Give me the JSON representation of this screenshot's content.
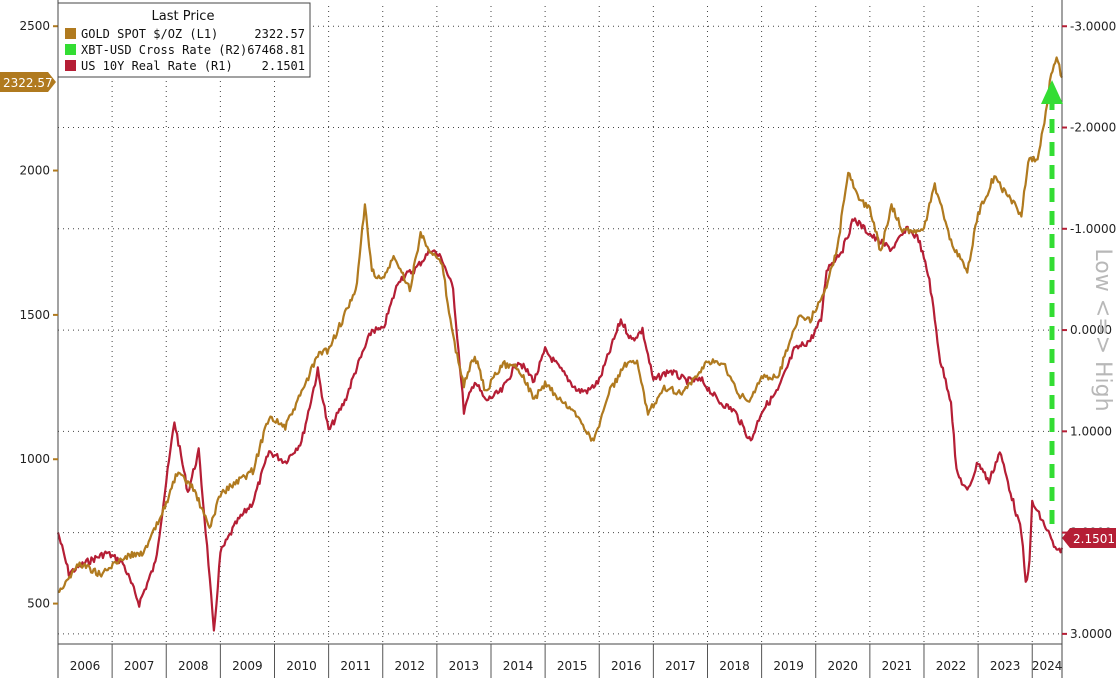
{
  "chart_data": {
    "type": "line",
    "legend": {
      "title": "Last Price",
      "placement": "top-left",
      "entries": [
        {
          "name": "GOLD SPOT $/OZ",
          "axis": "(L1)",
          "last": "2322.57",
          "color": "#b07a1f"
        },
        {
          "name": "XBT-USD Cross Rate",
          "axis": "(R2)",
          "last": "67468.81",
          "color": "#33dd33"
        },
        {
          "name": "US 10Y Real Rate",
          "axis": "(R1)",
          "last": "2.1501",
          "color": "#b51e35"
        }
      ]
    },
    "x_ticks": [
      "2006",
      "2007",
      "2008",
      "2009",
      "2010",
      "2011",
      "2012",
      "2013",
      "2014",
      "2015",
      "2016",
      "2017",
      "2018",
      "2019",
      "2020",
      "2021",
      "2022",
      "2023",
      "2024"
    ],
    "x_range": [
      2006.0,
      2024.55
    ],
    "left_axis": {
      "range": [
        360,
        2570
      ],
      "ticks": [
        "500",
        "1000",
        "1500",
        "2000",
        "2500"
      ],
      "last_tag": "2322.57"
    },
    "right_axis": {
      "inverted": true,
      "range": [
        3.1,
        -3.2
      ],
      "ticks": [
        "-3.0000",
        "-2.0000",
        "-1.0000",
        "0.0000",
        "1.0000",
        "2.0000",
        "3.0000"
      ],
      "last_tag": "2.1501"
    },
    "right_label": "Low <=> High",
    "grid": true,
    "annotation": {
      "type": "dashed-up-arrow",
      "color": "#33dd33"
    },
    "series": [
      {
        "name": "GOLD SPOT $/OZ",
        "axis": "left",
        "color": "#b07a1f",
        "points": [
          [
            2006.0,
            540
          ],
          [
            2006.4,
            640
          ],
          [
            2006.8,
            600
          ],
          [
            2007.2,
            660
          ],
          [
            2007.6,
            680
          ],
          [
            2007.9,
            800
          ],
          [
            2008.2,
            950
          ],
          [
            2008.5,
            900
          ],
          [
            2008.8,
            760
          ],
          [
            2009.0,
            880
          ],
          [
            2009.3,
            920
          ],
          [
            2009.6,
            960
          ],
          [
            2009.9,
            1150
          ],
          [
            2010.2,
            1110
          ],
          [
            2010.5,
            1230
          ],
          [
            2010.8,
            1360
          ],
          [
            2011.0,
            1380
          ],
          [
            2011.3,
            1500
          ],
          [
            2011.5,
            1580
          ],
          [
            2011.67,
            1880
          ],
          [
            2011.8,
            1650
          ],
          [
            2012.0,
            1620
          ],
          [
            2012.2,
            1700
          ],
          [
            2012.5,
            1590
          ],
          [
            2012.7,
            1780
          ],
          [
            2012.9,
            1720
          ],
          [
            2013.1,
            1670
          ],
          [
            2013.3,
            1420
          ],
          [
            2013.5,
            1260
          ],
          [
            2013.7,
            1360
          ],
          [
            2013.9,
            1230
          ],
          [
            2014.2,
            1330
          ],
          [
            2014.5,
            1320
          ],
          [
            2014.8,
            1210
          ],
          [
            2015.0,
            1260
          ],
          [
            2015.3,
            1200
          ],
          [
            2015.6,
            1150
          ],
          [
            2015.9,
            1060
          ],
          [
            2016.2,
            1240
          ],
          [
            2016.5,
            1330
          ],
          [
            2016.7,
            1330
          ],
          [
            2016.9,
            1160
          ],
          [
            2017.2,
            1250
          ],
          [
            2017.5,
            1230
          ],
          [
            2017.8,
            1280
          ],
          [
            2018.0,
            1340
          ],
          [
            2018.3,
            1330
          ],
          [
            2018.6,
            1220
          ],
          [
            2018.8,
            1200
          ],
          [
            2019.0,
            1290
          ],
          [
            2019.3,
            1280
          ],
          [
            2019.5,
            1400
          ],
          [
            2019.7,
            1500
          ],
          [
            2019.9,
            1480
          ],
          [
            2020.2,
            1600
          ],
          [
            2020.4,
            1730
          ],
          [
            2020.6,
            2000
          ],
          [
            2020.8,
            1900
          ],
          [
            2021.0,
            1870
          ],
          [
            2021.2,
            1720
          ],
          [
            2021.4,
            1880
          ],
          [
            2021.6,
            1790
          ],
          [
            2021.8,
            1790
          ],
          [
            2022.0,
            1800
          ],
          [
            2022.2,
            1950
          ],
          [
            2022.5,
            1750
          ],
          [
            2022.8,
            1650
          ],
          [
            2023.0,
            1850
          ],
          [
            2023.3,
            1980
          ],
          [
            2023.5,
            1920
          ],
          [
            2023.8,
            1850
          ],
          [
            2023.95,
            2050
          ],
          [
            2024.1,
            2030
          ],
          [
            2024.25,
            2200
          ],
          [
            2024.35,
            2340
          ],
          [
            2024.45,
            2390
          ],
          [
            2024.55,
            2322
          ]
        ]
      },
      {
        "name": "US 10Y Real Rate",
        "axis": "right",
        "color": "#b51e35",
        "points": [
          [
            2006.0,
            2.0
          ],
          [
            2006.2,
            2.4
          ],
          [
            2006.5,
            2.3
          ],
          [
            2006.9,
            2.2
          ],
          [
            2007.2,
            2.3
          ],
          [
            2007.5,
            2.7
          ],
          [
            2007.8,
            2.3
          ],
          [
            2008.0,
            1.5
          ],
          [
            2008.15,
            0.9
          ],
          [
            2008.4,
            1.6
          ],
          [
            2008.6,
            1.2
          ],
          [
            2008.78,
            2.3
          ],
          [
            2008.88,
            3.0
          ],
          [
            2009.0,
            2.2
          ],
          [
            2009.3,
            1.9
          ],
          [
            2009.6,
            1.7
          ],
          [
            2009.9,
            1.2
          ],
          [
            2010.2,
            1.3
          ],
          [
            2010.5,
            1.1
          ],
          [
            2010.8,
            0.4
          ],
          [
            2011.0,
            1.0
          ],
          [
            2011.3,
            0.7
          ],
          [
            2011.5,
            0.4
          ],
          [
            2011.8,
            0.0
          ],
          [
            2012.0,
            0.0
          ],
          [
            2012.3,
            -0.5
          ],
          [
            2012.6,
            -0.6
          ],
          [
            2012.9,
            -0.8
          ],
          [
            2013.1,
            -0.7
          ],
          [
            2013.3,
            -0.4
          ],
          [
            2013.5,
            0.8
          ],
          [
            2013.7,
            0.5
          ],
          [
            2013.9,
            0.7
          ],
          [
            2014.2,
            0.6
          ],
          [
            2014.5,
            0.3
          ],
          [
            2014.8,
            0.5
          ],
          [
            2015.0,
            0.2
          ],
          [
            2015.3,
            0.4
          ],
          [
            2015.6,
            0.6
          ],
          [
            2015.8,
            0.6
          ],
          [
            2016.0,
            0.5
          ],
          [
            2016.2,
            0.2
          ],
          [
            2016.4,
            -0.1
          ],
          [
            2016.6,
            0.1
          ],
          [
            2016.8,
            0.0
          ],
          [
            2017.0,
            0.5
          ],
          [
            2017.3,
            0.4
          ],
          [
            2017.6,
            0.5
          ],
          [
            2017.9,
            0.5
          ],
          [
            2018.2,
            0.7
          ],
          [
            2018.5,
            0.8
          ],
          [
            2018.8,
            1.1
          ],
          [
            2019.0,
            0.8
          ],
          [
            2019.3,
            0.6
          ],
          [
            2019.6,
            0.2
          ],
          [
            2019.9,
            0.1
          ],
          [
            2020.1,
            -0.1
          ],
          [
            2020.2,
            -0.6
          ],
          [
            2020.5,
            -0.8
          ],
          [
            2020.7,
            -1.1
          ],
          [
            2020.9,
            -1.0
          ],
          [
            2021.1,
            -0.9
          ],
          [
            2021.4,
            -0.8
          ],
          [
            2021.7,
            -1.0
          ],
          [
            2021.9,
            -0.9
          ],
          [
            2022.1,
            -0.5
          ],
          [
            2022.3,
            0.3
          ],
          [
            2022.5,
            0.7
          ],
          [
            2022.6,
            1.4
          ],
          [
            2022.8,
            1.6
          ],
          [
            2023.0,
            1.3
          ],
          [
            2023.2,
            1.5
          ],
          [
            2023.4,
            1.2
          ],
          [
            2023.6,
            1.6
          ],
          [
            2023.8,
            2.0
          ],
          [
            2023.88,
            2.5
          ],
          [
            2023.95,
            2.3
          ],
          [
            2024.0,
            1.7
          ],
          [
            2024.1,
            1.8
          ],
          [
            2024.3,
            2.0
          ],
          [
            2024.45,
            2.2
          ],
          [
            2024.55,
            2.15
          ]
        ]
      }
    ]
  }
}
